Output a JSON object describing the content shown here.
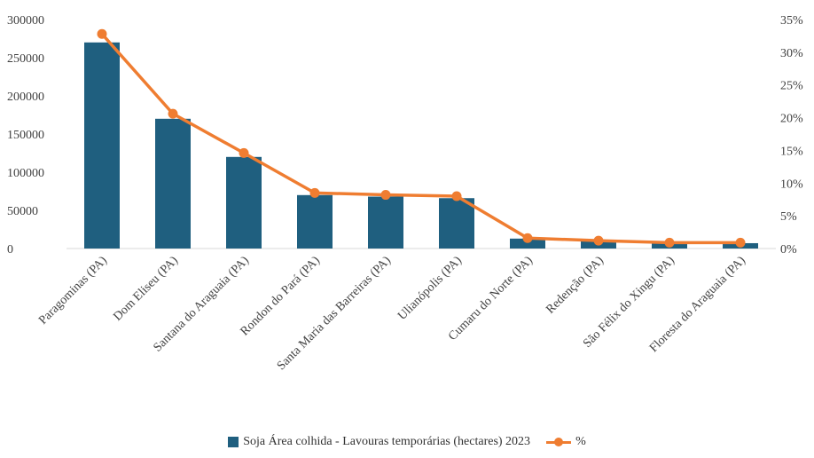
{
  "chart_data": {
    "type": "bar",
    "categories": [
      "Paragominas (PA)",
      "Dom Eliseu (PA)",
      "Santana do Araguaia (PA)",
      "Rondon do Pará (PA)",
      "Santa Maria das Barreiras (PA)",
      "Ulianópolis (PA)",
      "Cumaru do Norte (PA)",
      "Redenção (PA)",
      "São Félix do Xingu (PA)",
      "Floresta do Araguaia (PA)"
    ],
    "series": [
      {
        "name": "Soja Área colhida - Lavouras temporárias (hectares) 2023",
        "type": "bar",
        "axis": "left",
        "values": [
          270000,
          170000,
          120000,
          70000,
          68000,
          66000,
          13000,
          10000,
          8000,
          7000
        ]
      },
      {
        "name": "%",
        "type": "line",
        "axis": "right",
        "values": [
          32.8,
          20.6,
          14.6,
          8.5,
          8.2,
          8.0,
          1.6,
          1.2,
          0.9,
          0.9
        ]
      }
    ],
    "left_axis": {
      "ylim": [
        0,
        300000
      ],
      "ticks": [
        "300000",
        "250000",
        "200000",
        "150000",
        "100000",
        "50000",
        "0"
      ]
    },
    "right_axis": {
      "ylim": [
        0,
        35
      ],
      "ticks": [
        "35%",
        "30%",
        "25%",
        "20%",
        "15%",
        "10%",
        "5%",
        "0%"
      ]
    },
    "grid": false,
    "legend_position": "bottom",
    "colors": {
      "bar": "#1f5f7f",
      "line": "#ef7d31"
    }
  }
}
